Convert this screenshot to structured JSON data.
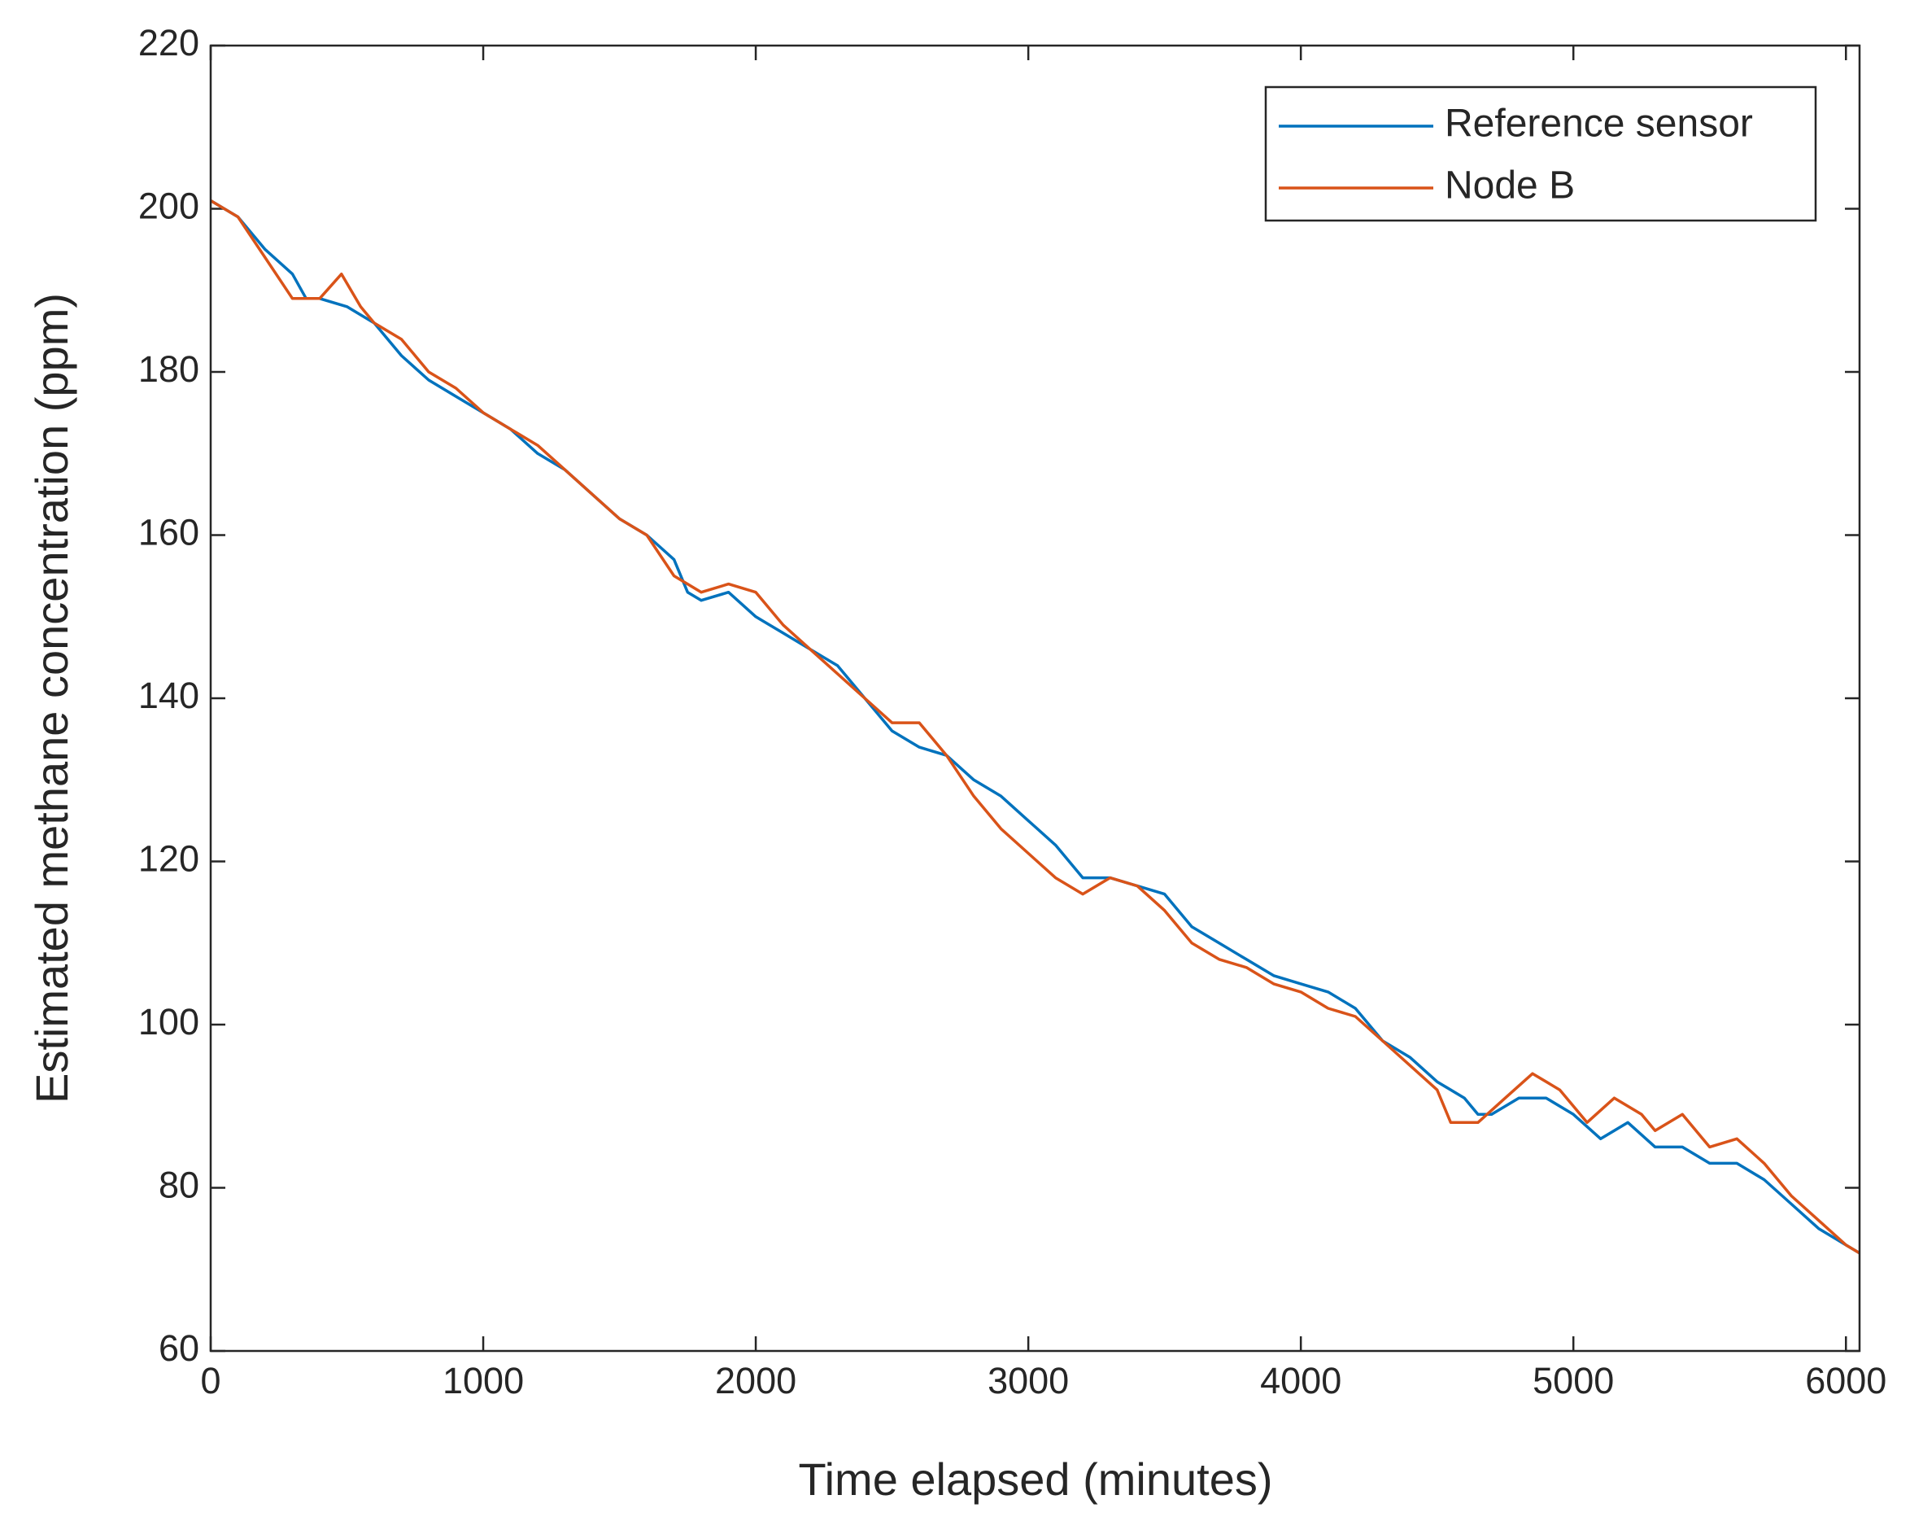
{
  "chart_data": {
    "type": "line",
    "xlabel": "Time elapsed (minutes)",
    "ylabel": "Estimated methane concentration (ppm)",
    "xlim": [
      0,
      6050
    ],
    "ylim": [
      60,
      220
    ],
    "xticks": [
      0,
      1000,
      2000,
      3000,
      4000,
      5000,
      6000
    ],
    "yticks": [
      60,
      80,
      100,
      120,
      140,
      160,
      180,
      200,
      220
    ],
    "legend": "upper right",
    "series": [
      {
        "name": "Reference sensor",
        "color": "#0072bd",
        "x": [
          0,
          100,
          200,
          300,
          350,
          400,
          500,
          600,
          700,
          800,
          900,
          1000,
          1100,
          1200,
          1300,
          1400,
          1500,
          1600,
          1700,
          1750,
          1800,
          1900,
          2000,
          2100,
          2200,
          2300,
          2400,
          2500,
          2600,
          2700,
          2800,
          2900,
          3000,
          3100,
          3200,
          3300,
          3400,
          3500,
          3600,
          3700,
          3800,
          3900,
          4000,
          4100,
          4200,
          4300,
          4400,
          4500,
          4600,
          4650,
          4700,
          4800,
          4900,
          5000,
          5100,
          5200,
          5300,
          5400,
          5500,
          5600,
          5700,
          5800,
          5900,
          6000,
          6050
        ],
        "values": [
          201,
          199,
          195,
          192,
          189,
          189,
          188,
          186,
          182,
          179,
          177,
          175,
          173,
          170,
          168,
          165,
          162,
          160,
          157,
          153,
          152,
          153,
          150,
          148,
          146,
          144,
          140,
          136,
          134,
          133,
          130,
          128,
          125,
          122,
          118,
          118,
          117,
          116,
          112,
          110,
          108,
          106,
          105,
          104,
          102,
          98,
          96,
          93,
          91,
          89,
          89,
          91,
          91,
          89,
          86,
          88,
          85,
          85,
          83,
          83,
          81,
          78,
          75,
          73,
          72
        ]
      },
      {
        "name": "Node B",
        "color": "#d95319",
        "x": [
          0,
          100,
          200,
          300,
          400,
          480,
          550,
          600,
          700,
          800,
          900,
          1000,
          1100,
          1200,
          1300,
          1400,
          1500,
          1600,
          1700,
          1800,
          1900,
          2000,
          2100,
          2200,
          2300,
          2400,
          2500,
          2600,
          2700,
          2800,
          2900,
          3000,
          3100,
          3200,
          3300,
          3400,
          3500,
          3600,
          3700,
          3800,
          3900,
          4000,
          4100,
          4200,
          4300,
          4400,
          4500,
          4550,
          4650,
          4750,
          4850,
          4950,
          5050,
          5150,
          5250,
          5300,
          5400,
          5500,
          5600,
          5700,
          5800,
          5900,
          6000,
          6050
        ],
        "values": [
          201,
          199,
          194,
          189,
          189,
          192,
          188,
          186,
          184,
          180,
          178,
          175,
          173,
          171,
          168,
          165,
          162,
          160,
          155,
          153,
          154,
          153,
          149,
          146,
          143,
          140,
          137,
          137,
          133,
          128,
          124,
          121,
          118,
          116,
          118,
          117,
          114,
          110,
          108,
          107,
          105,
          104,
          102,
          101,
          98,
          95,
          92,
          88,
          88,
          91,
          94,
          92,
          88,
          91,
          89,
          87,
          89,
          85,
          86,
          83,
          79,
          76,
          73,
          72
        ]
      }
    ]
  }
}
